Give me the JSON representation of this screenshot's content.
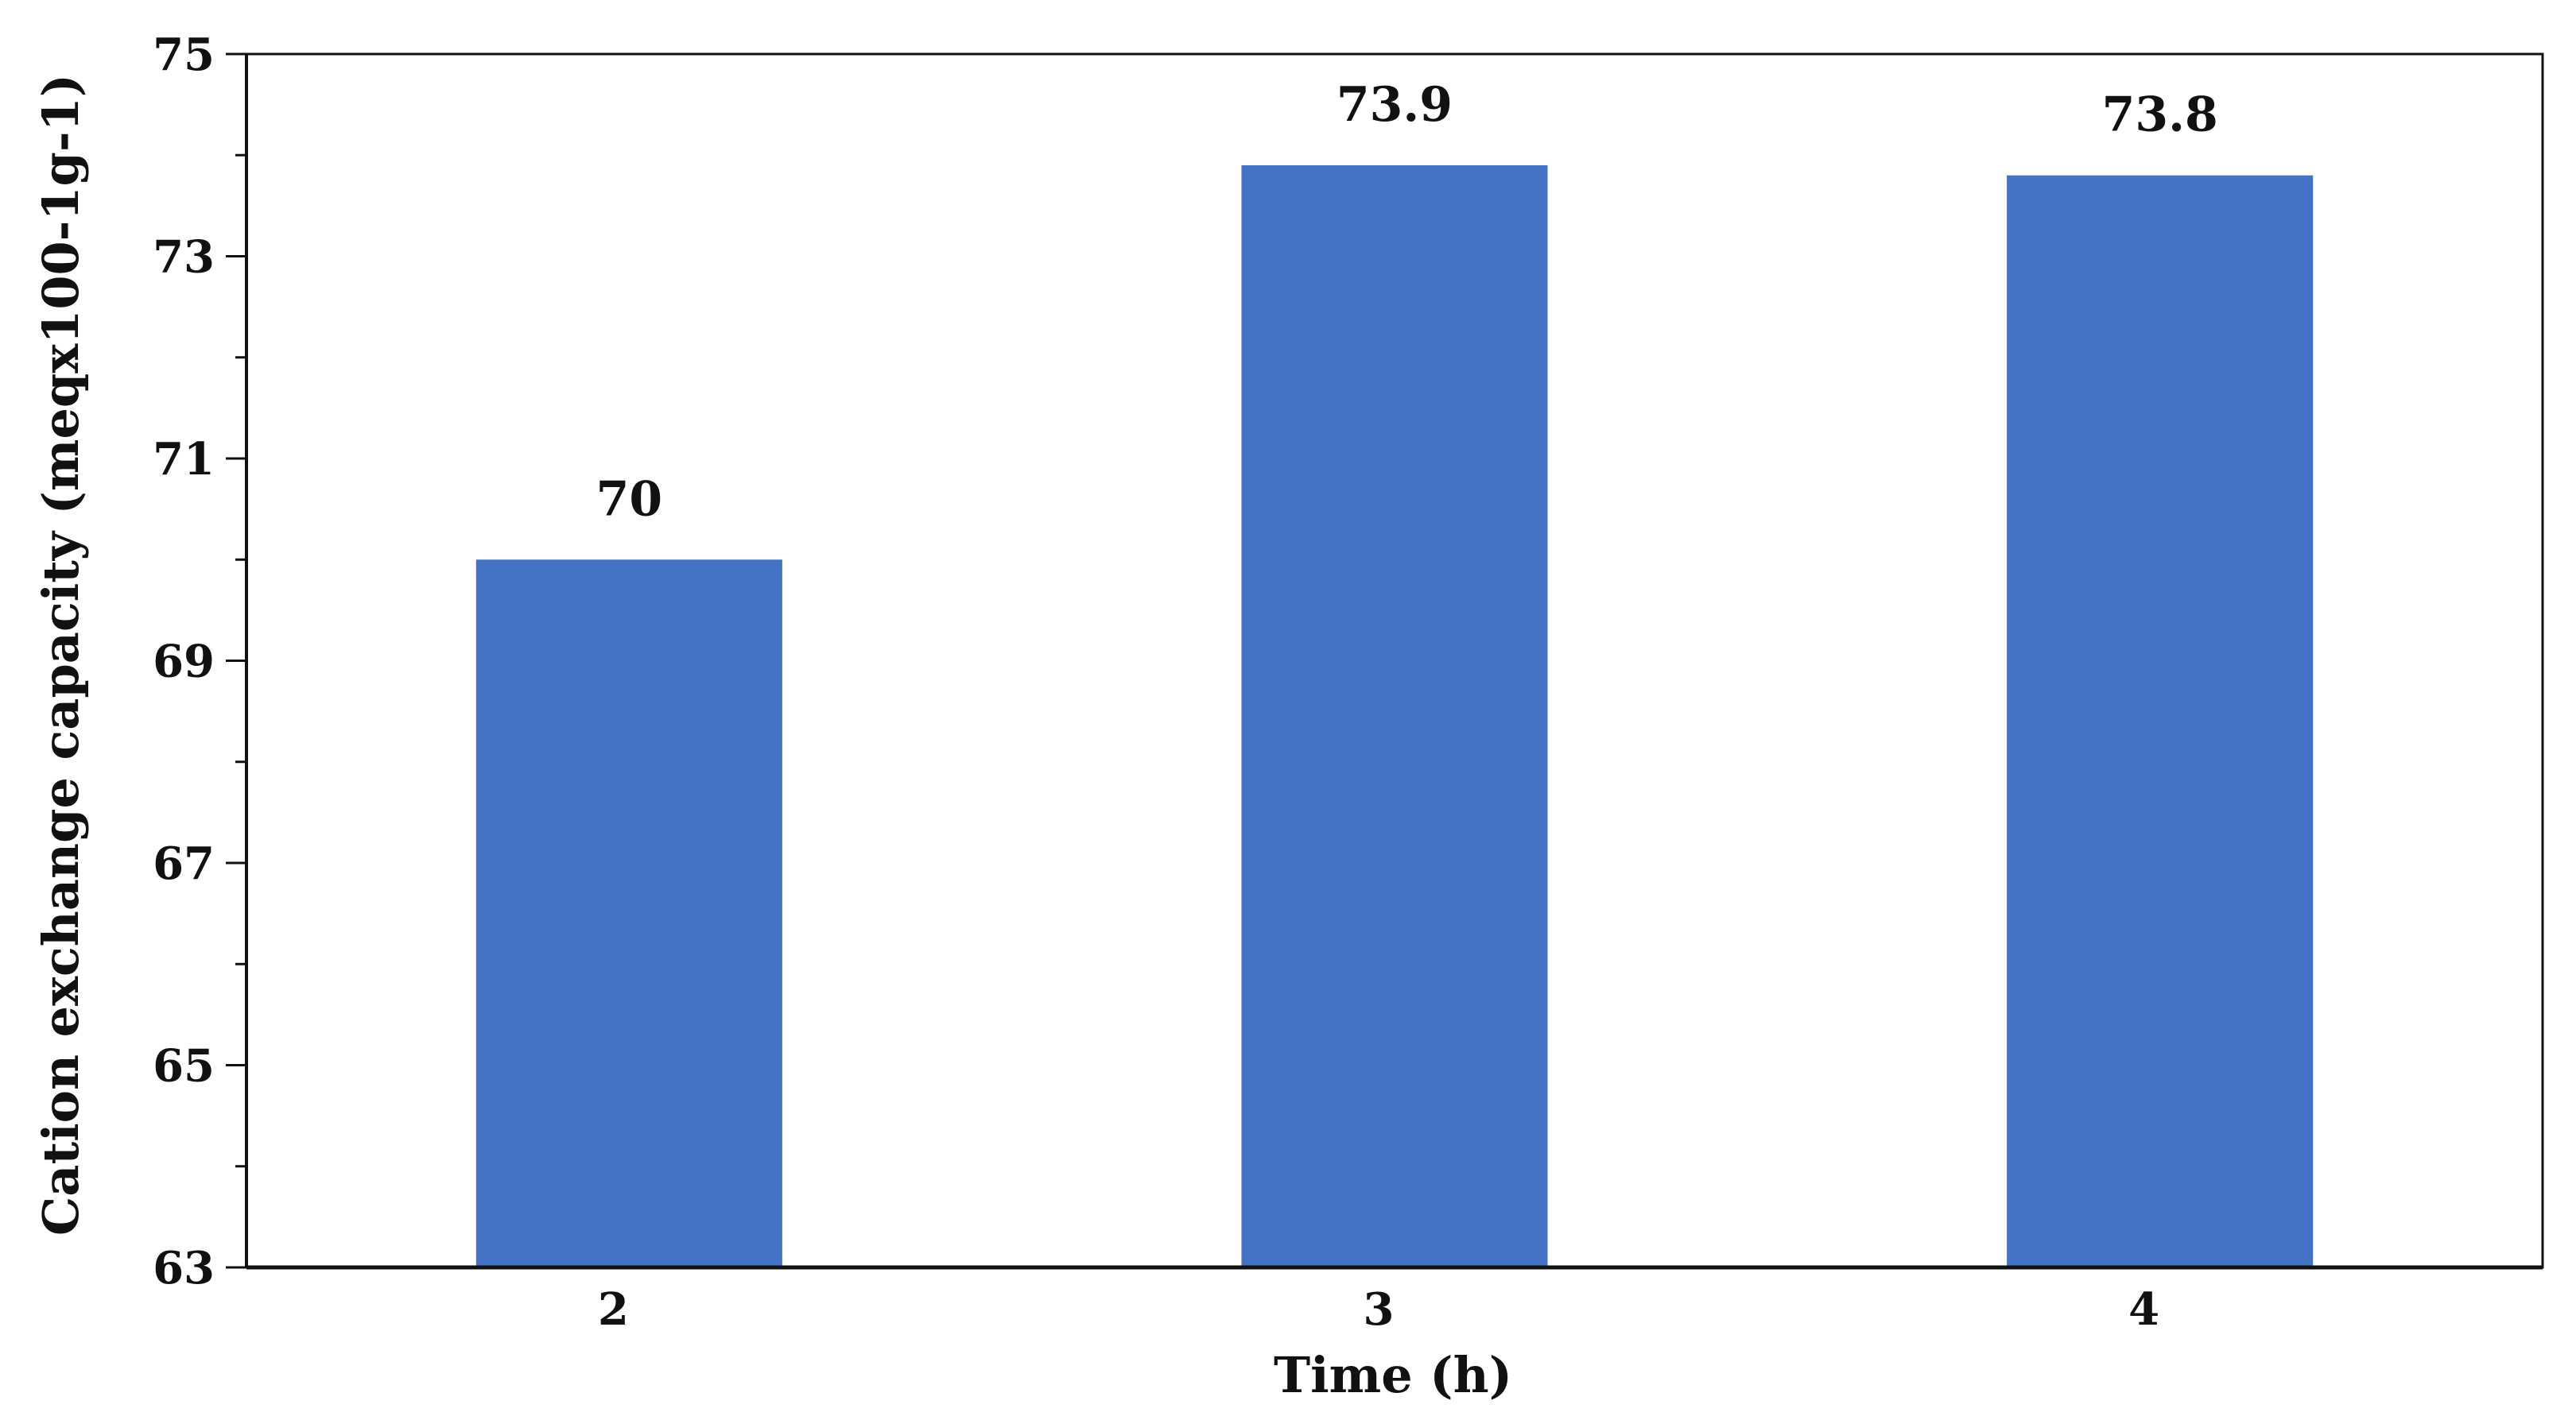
{
  "chart_data": {
    "type": "bar",
    "categories": [
      "2",
      "3",
      "4"
    ],
    "values": [
      70,
      73.9,
      73.8
    ],
    "data_labels": [
      "70",
      "73.9",
      "73.8"
    ],
    "title": "",
    "xlabel": "Time (h)",
    "ylabel": "Cation exchange capacity (meqx100-1g-1)",
    "ylim": [
      63,
      75
    ],
    "yticks": [
      63,
      65,
      67,
      69,
      71,
      73,
      75
    ],
    "y_tick_labels": [
      "63",
      "65",
      "67",
      "69",
      "71",
      "73",
      "75"
    ],
    "y_minor_step": 1,
    "grid": false,
    "legend": "none",
    "bar_color": "#4472C4",
    "axis_color": "#111111"
  }
}
